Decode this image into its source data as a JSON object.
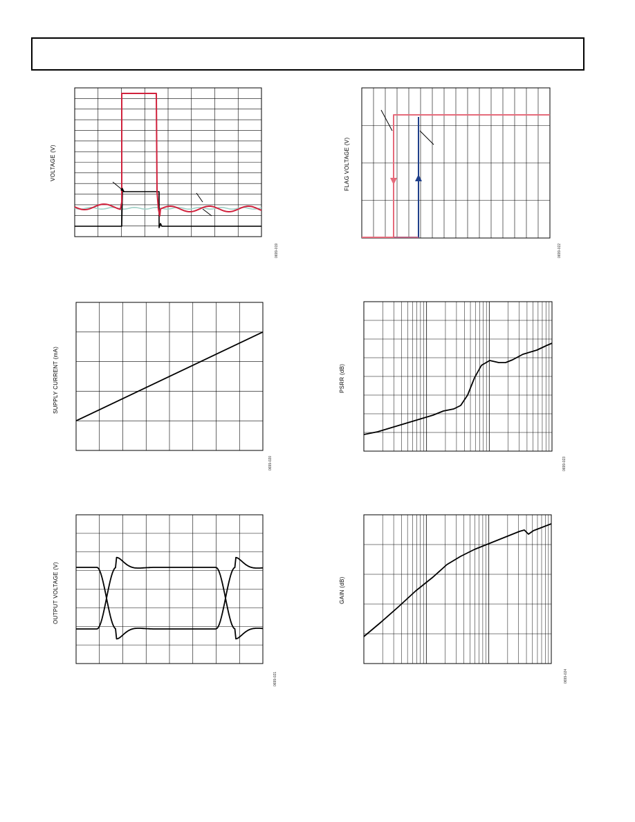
{
  "chart_data": [
    {
      "type": "line",
      "ylabel": "VOLTAGE (V)",
      "figure_id": "0699-019",
      "grid": true,
      "grid_divisions": {
        "x": 8,
        "y": 14
      },
      "series": [
        {
          "color": "#d0213c",
          "role": "pulse-with-ripple",
          "values_note": ""
        },
        {
          "color": "#000000",
          "role": "step"
        },
        {
          "color": "#9fd0c6",
          "role": "baseline"
        }
      ]
    },
    {
      "type": "line",
      "ylabel": "FLAG VOLTAGE (V)",
      "figure_id": "0699-022",
      "grid": true,
      "grid_divisions": {
        "x": 16,
        "y": 4
      },
      "series": [
        {
          "color": "#e56a7a",
          "role": "falling-flag"
        },
        {
          "color": "#1f3f8a",
          "role": "rising-flag"
        }
      ]
    },
    {
      "type": "line",
      "ylabel": "SUPPLY CURRENT (mA)",
      "figure_id": "0699-020",
      "grid": true,
      "grid_divisions": {
        "x": 8,
        "y": 5
      },
      "series": [
        {
          "color": "#000000",
          "x": [
            0,
            1
          ],
          "y": [
            0.2,
            0.8
          ]
        }
      ]
    },
    {
      "type": "line",
      "ylabel": "PSRR (dB)",
      "figure_id": "0699-023",
      "grid": true,
      "x_scale": "log",
      "grid_divisions": {
        "x_decades": 3,
        "y": 8
      },
      "series": [
        {
          "color": "#000000"
        }
      ]
    },
    {
      "type": "line",
      "ylabel": "OUTPUT VOLTAGE (V)",
      "figure_id": "0699-021",
      "grid": true,
      "grid_divisions": {
        "x": 8,
        "y": 8
      },
      "series": [
        {
          "color": "#000000",
          "role": "rising-edge"
        },
        {
          "color": "#000000",
          "role": "falling-edge"
        }
      ]
    },
    {
      "type": "line",
      "ylabel": "GAIN (dB)",
      "figure_id": "0699-024",
      "grid": true,
      "x_scale": "log",
      "grid_divisions": {
        "x_decades": 3,
        "y": 5
      },
      "series": [
        {
          "color": "#000000"
        }
      ]
    }
  ]
}
